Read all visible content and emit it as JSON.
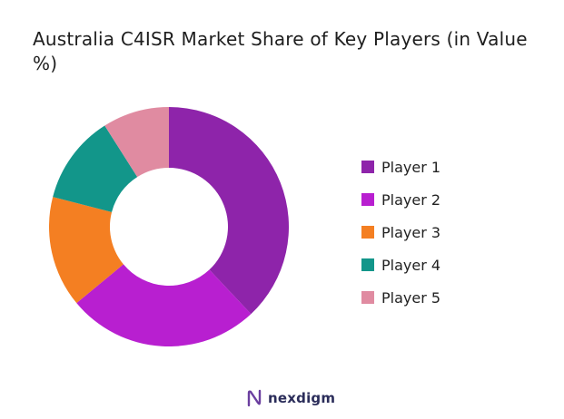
{
  "chart_data": {
    "type": "pie",
    "title": "Australia C4ISR Market Share of Key Players (in Value %)",
    "categories": [
      "Player 1",
      "Player 2",
      "Player 3",
      "Player 4",
      "Player 5"
    ],
    "values": [
      38,
      26,
      15,
      12,
      9
    ],
    "colors": [
      "#8e24aa",
      "#b81fd0",
      "#f47f22",
      "#12968a",
      "#e08ba1"
    ],
    "legend_position": "right",
    "donut": true
  },
  "brand": {
    "name": "nexdigm",
    "icon": "nexdigm-logo-icon"
  }
}
